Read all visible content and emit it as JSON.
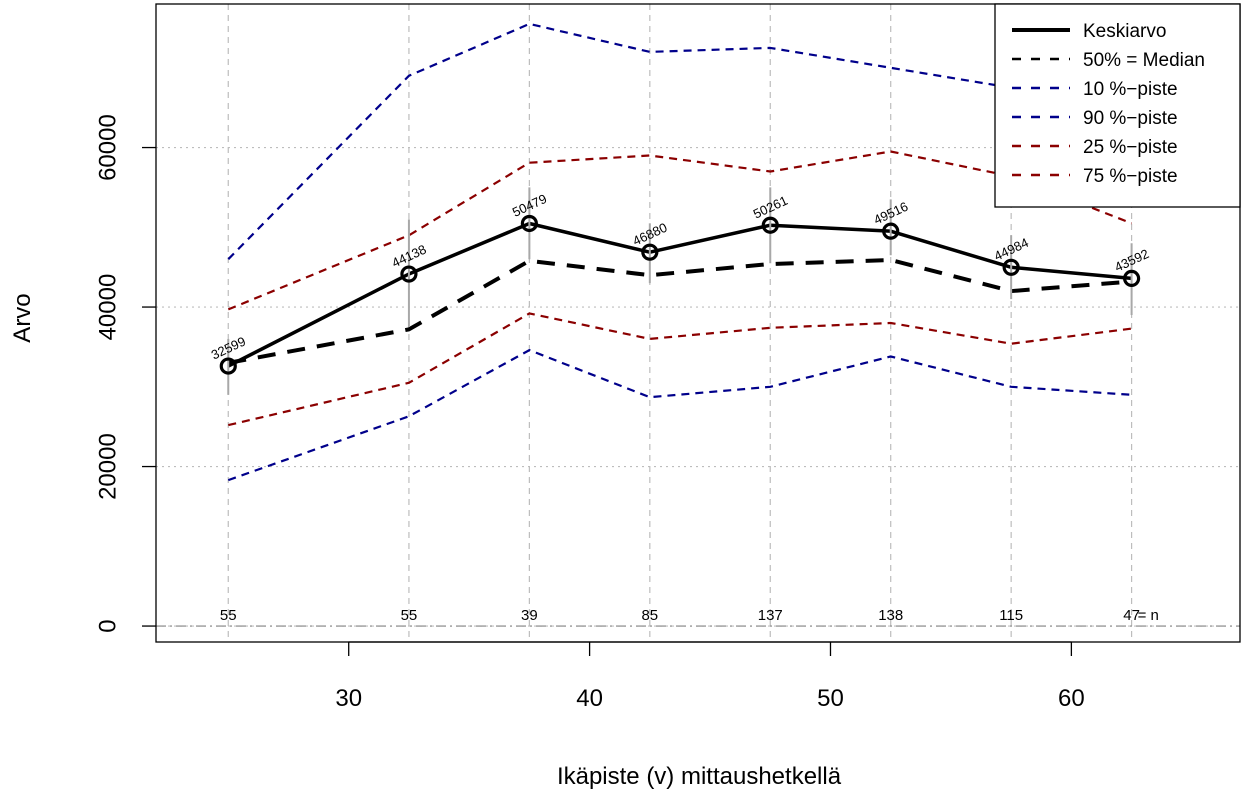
{
  "chart_data": {
    "type": "line",
    "title": "",
    "xlabel": "Ikäpiste (v) mittaushetkellä",
    "ylabel": "Arvo",
    "xlim": [
      22,
      67
    ],
    "ylim": [
      -2000,
      78000
    ],
    "x_ticks": [
      30,
      40,
      50,
      60
    ],
    "y_ticks": [
      0,
      20000,
      40000,
      60000
    ],
    "x_tick_labels": [
      "30",
      "40",
      "50",
      "60"
    ],
    "y_tick_labels": [
      "0",
      "20000",
      "40000",
      "60000"
    ],
    "grid": true,
    "legend_position": "top-right",
    "x": [
      25,
      32.5,
      37.5,
      42.5,
      47.5,
      52.5,
      57.5,
      62.5
    ],
    "series": [
      {
        "name": "Keskiarvo",
        "style": "solid",
        "color": "#000000",
        "values": [
          32599,
          44138,
          50479,
          46880,
          50261,
          49516,
          44984,
          43592
        ]
      },
      {
        "name": "50% = Median",
        "style": "dashed",
        "color": "#000000",
        "values": [
          33000,
          37200,
          45800,
          44000,
          45400,
          45900,
          42000,
          43200
        ]
      },
      {
        "name": "10 %−piste",
        "style": "dashed",
        "color": "#00008b",
        "values": [
          18300,
          26300,
          34600,
          28700,
          30000,
          33800,
          30000,
          29000
        ]
      },
      {
        "name": "90 %−piste",
        "style": "dashed",
        "color": "#00008b",
        "values": [
          46000,
          69000,
          75500,
          72000,
          72500,
          70000,
          67500,
          60300
        ]
      },
      {
        "name": "25 %−piste",
        "style": "dashed",
        "color": "#8b0000",
        "values": [
          25200,
          30500,
          39200,
          36000,
          37400,
          38000,
          35400,
          37300
        ]
      },
      {
        "name": "75 %−piste",
        "style": "dashed",
        "color": "#8b0000",
        "values": [
          39700,
          49000,
          58100,
          59000,
          57000,
          59500,
          56400,
          50500
        ]
      }
    ],
    "mean_labels": [
      "32599",
      "44138",
      "50479",
      "46880",
      "50261",
      "49516",
      "44984",
      "43592"
    ],
    "n_values": [
      "55",
      "55",
      "39",
      "85",
      "137",
      "138",
      "115",
      "47"
    ],
    "n_suffix": "= n",
    "error_bars": [
      {
        "low": 29000,
        "high": 36000
      },
      {
        "low": 37500,
        "high": 51000
      },
      {
        "low": 46000,
        "high": 55000
      },
      {
        "low": 43000,
        "high": 50500
      },
      {
        "low": 45500,
        "high": 55000
      },
      {
        "low": 46500,
        "high": 53500
      },
      {
        "low": 41000,
        "high": 49000
      },
      {
        "low": 39000,
        "high": 48000
      }
    ]
  }
}
